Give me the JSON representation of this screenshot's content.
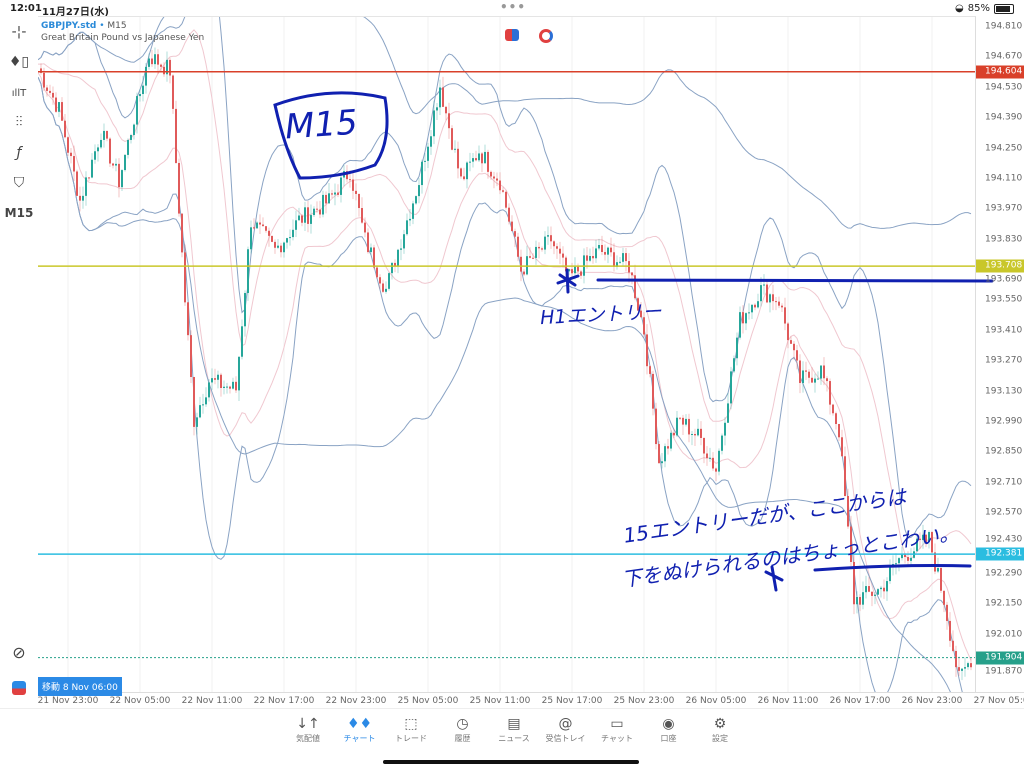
{
  "status_bar": {
    "time": "12:01",
    "date": "11月27日(水)",
    "battery": "85%",
    "battery_level": 0.85,
    "more": "•••"
  },
  "symbol": {
    "name": "GBPJPY.std",
    "timeframe": "M15",
    "separator": "•",
    "description": "Great Britain Pound vs Japanese Yen"
  },
  "toolbar": {
    "items": [
      {
        "icon": "crosshair-icon",
        "glyph": "-¦-"
      },
      {
        "icon": "candlestick-icon",
        "glyph": "♦▯"
      },
      {
        "icon": "indicators-icon",
        "glyph": "ıllT"
      },
      {
        "icon": "sliders-icon",
        "glyph": "⫶⫶"
      },
      {
        "icon": "function-icon",
        "glyph": "ƒ"
      },
      {
        "icon": "objects-icon",
        "glyph": "⛉"
      }
    ],
    "timeframe": "M15"
  },
  "move_badge": "移動 8 Nov 06:00",
  "colors": {
    "bull": "#26a69a",
    "bear": "#e05a5a",
    "band_outer": "#8aa3c4",
    "band_inner": "#f0c8d0",
    "red_line": "#d9402a",
    "yellow_line": "#c9c72a",
    "cyan_line": "#2bbde0",
    "current": "#26a08a",
    "ink": "#1020b0",
    "accent": "#2b8ae6"
  },
  "chart_data": {
    "type": "candlestick",
    "price_ticks": [
      "194.810",
      "194.670",
      "194.530",
      "194.390",
      "194.250",
      "194.110",
      "193.970",
      "193.830",
      "193.690",
      "193.550",
      "193.410",
      "193.270",
      "193.130",
      "192.990",
      "192.850",
      "192.710",
      "192.570",
      "192.430",
      "192.290",
      "192.150",
      "192.010",
      "191.870"
    ],
    "time_ticks": [
      "21 Nov 23:00",
      "22 Nov 05:00",
      "22 Nov 11:00",
      "22 Nov 17:00",
      "22 Nov 23:00",
      "25 Nov 05:00",
      "25 Nov 11:00",
      "25 Nov 17:00",
      "25 Nov 23:00",
      "26 Nov 05:00",
      "26 Nov 11:00",
      "26 Nov 17:00",
      "26 Nov 23:00",
      "27 Nov 05:00"
    ],
    "price_path": [
      [
        "21 Nov 20:30",
        194.62
      ],
      [
        "21 Nov 22:15",
        194.43
      ],
      [
        "22 Nov 00:00",
        194.01
      ],
      [
        "22 Nov 01:45",
        194.33
      ],
      [
        "22 Nov 03:15",
        194.1
      ],
      [
        "22 Nov 05:45",
        194.68
      ],
      [
        "22 Nov 07:30",
        194.61
      ],
      [
        "22 Nov 08:45",
        193.55
      ],
      [
        "22 Nov 09:30",
        193.0
      ],
      [
        "22 Nov 10:45",
        193.18
      ],
      [
        "22 Nov 13:00",
        193.14
      ],
      [
        "22 Nov 14:15",
        193.92
      ],
      [
        "22 Nov 16:15",
        193.78
      ],
      [
        "22 Nov 18:15",
        193.92
      ],
      [
        "22 Nov 20:45",
        194.01
      ],
      [
        "22 Nov 22:30",
        194.15
      ],
      [
        "22 Nov 23:45",
        193.83
      ],
      [
        "25 Nov 01:30",
        193.6
      ],
      [
        "25 Nov 02:45",
        193.83
      ],
      [
        "25 Nov 04:15",
        194.1
      ],
      [
        "25 Nov 06:00",
        194.54
      ],
      [
        "25 Nov 07:45",
        194.1
      ],
      [
        "25 Nov 09:15",
        194.24
      ],
      [
        "25 Nov 11:00",
        194.1
      ],
      [
        "25 Nov 12:45",
        193.69
      ],
      [
        "25 Nov 15:15",
        193.83
      ],
      [
        "25 Nov 16:45",
        193.65
      ],
      [
        "25 Nov 19:15",
        193.78
      ],
      [
        "25 Nov 21:45",
        193.71
      ],
      [
        "25 Nov 23:00",
        193.41
      ],
      [
        "26 Nov 00:15",
        192.81
      ],
      [
        "26 Nov 02:00",
        193.0
      ],
      [
        "26 Nov 03:45",
        192.91
      ],
      [
        "26 Nov 05:00",
        192.77
      ],
      [
        "26 Nov 07:00",
        193.46
      ],
      [
        "26 Nov 08:45",
        193.6
      ],
      [
        "26 Nov 10:15",
        193.55
      ],
      [
        "26 Nov 12:00",
        193.18
      ],
      [
        "26 Nov 13:45",
        193.23
      ],
      [
        "26 Nov 15:15",
        192.95
      ],
      [
        "26 Nov 16:30",
        192.17
      ],
      [
        "26 Nov 18:45",
        192.22
      ],
      [
        "26 Nov 20:15",
        192.36
      ],
      [
        "26 Nov 22:45",
        192.45
      ],
      [
        "27 Nov 00:00",
        192.17
      ],
      [
        "27 Nov 01:15",
        191.8
      ],
      [
        "27 Nov 02:15",
        191.9
      ]
    ],
    "levels": [
      {
        "price": 194.604,
        "label": "194.604",
        "color": "#d9402a"
      },
      {
        "price": 193.708,
        "label": "193.708",
        "color": "#c9c72a"
      },
      {
        "price": 192.381,
        "label": "192.381",
        "color": "#2bbde0"
      },
      {
        "price": 191.904,
        "label": "191.904",
        "color": "#26a08a",
        "style": "dotted"
      }
    ],
    "indicator": "Bollinger Bands"
  },
  "annotations": {
    "m15": "M15",
    "h1_entry": "H1エントリー",
    "note_line1": "15エントリーだが、ここからは",
    "note_line2": "下をぬけられるのはちょっとこわい。"
  },
  "nav": {
    "items": [
      {
        "label": "気配値",
        "icon": "↓↑"
      },
      {
        "label": "チャート",
        "icon": "♦♦",
        "active": true
      },
      {
        "label": "トレード",
        "icon": "⬚"
      },
      {
        "label": "履歴",
        "icon": "◷"
      },
      {
        "label": "ニュース",
        "icon": "▤"
      },
      {
        "label": "受信トレイ",
        "icon": "@"
      },
      {
        "label": "チャット",
        "icon": "▭"
      },
      {
        "label": "口座",
        "icon": "◉"
      },
      {
        "label": "設定",
        "icon": "⚙"
      }
    ]
  }
}
